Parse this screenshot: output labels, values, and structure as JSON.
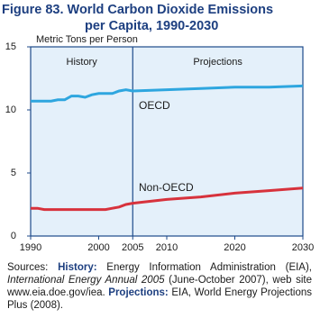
{
  "chart_data": {
    "type": "line",
    "title": "Figure 83.  World Carbon Dioxide Emissions",
    "subtitle": "per Capita, 1990-2030",
    "y_label": "Metric Tons per Person",
    "x": [
      1990,
      1991,
      1992,
      1993,
      1994,
      1995,
      1996,
      1997,
      1998,
      1999,
      2000,
      2001,
      2002,
      2003,
      2004,
      2005,
      2010,
      2015,
      2020,
      2025,
      2030
    ],
    "series": [
      {
        "name": "OECD",
        "color": "#2ea6df",
        "values": [
          10.7,
          10.7,
          10.7,
          10.7,
          10.8,
          10.8,
          11.1,
          11.1,
          11.0,
          11.2,
          11.3,
          11.3,
          11.3,
          11.5,
          11.6,
          11.5,
          11.6,
          11.7,
          11.8,
          11.8,
          11.9
        ]
      },
      {
        "name": "Non-OECD",
        "color": "#d7323c",
        "values": [
          2.2,
          2.2,
          2.1,
          2.1,
          2.1,
          2.1,
          2.1,
          2.1,
          2.1,
          2.1,
          2.1,
          2.1,
          2.2,
          2.3,
          2.5,
          2.6,
          2.9,
          3.1,
          3.4,
          3.6,
          3.8
        ]
      }
    ],
    "xlim": [
      1990,
      2030
    ],
    "xticks": [
      1990,
      2000,
      2005,
      2010,
      2020,
      2030
    ],
    "ylim": [
      0,
      15
    ],
    "yticks": [
      0,
      5,
      10,
      15
    ],
    "divider_x": 2005,
    "region_labels": [
      "History",
      "Projections"
    ],
    "sources": [
      {
        "text": "Sources: ",
        "style": "normal"
      },
      {
        "text": "History:",
        "style": "bold"
      },
      {
        "text": " Energy Information Administration (EIA), ",
        "style": "normal"
      },
      {
        "text": "International Energy Annual 2005",
        "style": "italic"
      },
      {
        "text": " (June-October 2007), web site www.eia.doe.gov/iea. ",
        "style": "normal"
      },
      {
        "text": "Projections:",
        "style": "bold"
      },
      {
        "text": " EIA, World Energy Projections Plus (2008).",
        "style": "normal"
      }
    ]
  }
}
